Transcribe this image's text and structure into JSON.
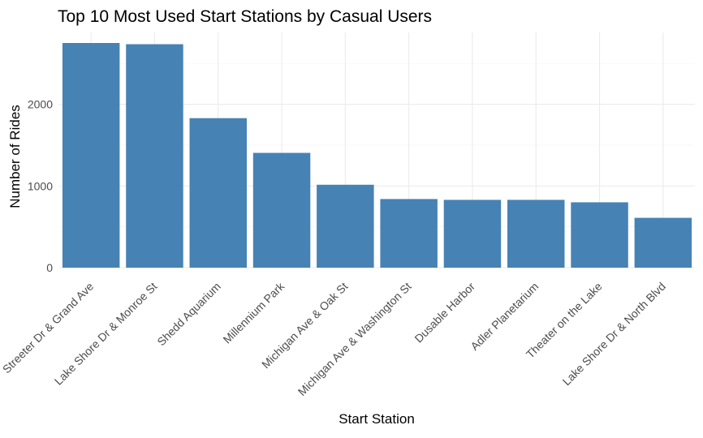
{
  "chart_data": {
    "type": "bar",
    "title": "Top 10 Most Used Start Stations by Casual Users",
    "xlabel": "Start Station",
    "ylabel": "Number of Rides",
    "categories": [
      "Streeter Dr & Grand Ave",
      "Lake Shore Dr & Monroe St",
      "Shedd Aquarium",
      "Millennium Park",
      "Michigan Ave & Oak St",
      "Michigan Ave & Washington St",
      "Dusable Harbor",
      "Adler Planetarium",
      "Theater on the Lake",
      "Lake Shore Dr & North Blvd"
    ],
    "values": [
      2750,
      2735,
      1830,
      1405,
      1015,
      840,
      830,
      830,
      800,
      610
    ],
    "ylim": [
      0,
      2750
    ],
    "yticks": [
      0,
      1000,
      2000
    ],
    "ytick_labels": [
      "0",
      "1000",
      "2000"
    ],
    "bar_color": "#4682b4",
    "grid": true,
    "legend": "none"
  }
}
